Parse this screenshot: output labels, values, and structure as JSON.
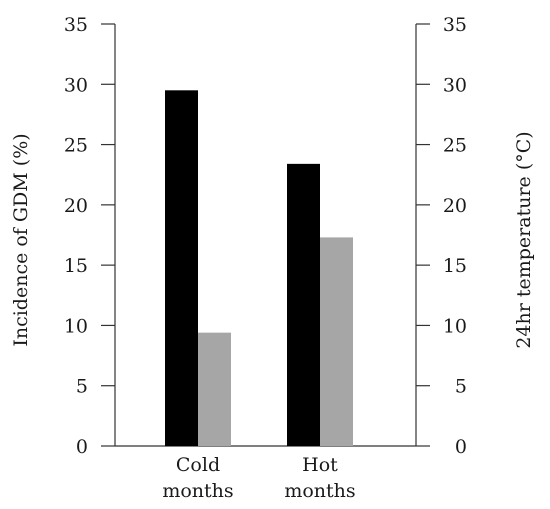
{
  "chart_data": {
    "type": "bar",
    "categories": [
      [
        "Cold",
        "months"
      ],
      [
        "Hot",
        "months"
      ]
    ],
    "series": [
      {
        "values": [
          29.5,
          23.4
        ],
        "color": "#000000",
        "axis": "left"
      },
      {
        "values": [
          9.4,
          17.3
        ],
        "color": "#a6a6a6",
        "axis": "right"
      }
    ],
    "ylabel": "Incidence of GDM (%)",
    "ylabel_right": "24hr temperature (°C)",
    "ylim": [
      0,
      35
    ],
    "ylim_right": [
      0,
      35
    ],
    "yticks": [
      "0",
      "5",
      "10",
      "15",
      "20",
      "25",
      "30",
      "35"
    ],
    "yticks_right": [
      "0",
      "5",
      "10",
      "15",
      "20",
      "25",
      "30",
      "35"
    ],
    "grid": false,
    "legend": "none"
  }
}
